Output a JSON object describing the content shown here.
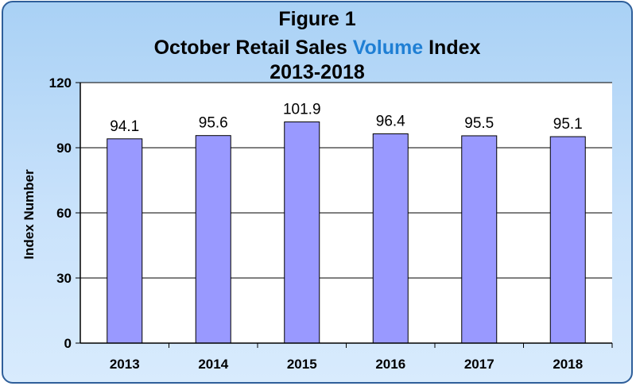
{
  "title": {
    "line1": "Figure 1",
    "line2_prefix": "October Retail Sales",
    "line2_highlight": "Volume",
    "line2_suffix": "Index",
    "line3": "2013-2018"
  },
  "colors": {
    "bar_fill": "#9999ff",
    "bar_stroke": "#000000",
    "plot_bg": "#ffffff",
    "title_highlight": "#1f7fd4",
    "frame_border": "#2f5f9a"
  },
  "chart_data": {
    "type": "bar",
    "categories": [
      "2013",
      "2014",
      "2015",
      "2016",
      "2017",
      "2018"
    ],
    "values": [
      94.1,
      95.6,
      101.9,
      96.4,
      95.5,
      95.1
    ],
    "data_labels": [
      "94.1",
      "95.6",
      "101.9",
      "96.4",
      "95.5",
      "95.1"
    ],
    "title": "Figure 1 October Retail Sales Volume Index 2013-2018",
    "xlabel": "",
    "ylabel": "Index Number",
    "ylim": [
      0,
      120
    ],
    "yticks": [
      0,
      30,
      60,
      90,
      120
    ],
    "grid": true,
    "legend": "none"
  }
}
